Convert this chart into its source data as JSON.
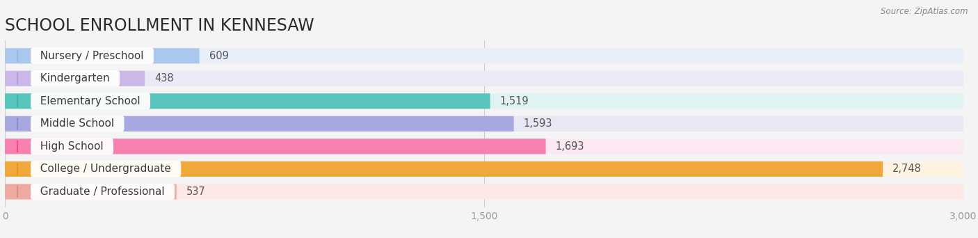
{
  "title": "SCHOOL ENROLLMENT IN KENNESAW",
  "source": "Source: ZipAtlas.com",
  "categories": [
    "Nursery / Preschool",
    "Kindergarten",
    "Elementary School",
    "Middle School",
    "High School",
    "College / Undergraduate",
    "Graduate / Professional"
  ],
  "values": [
    609,
    438,
    1519,
    1593,
    1693,
    2748,
    537
  ],
  "bar_colors": [
    "#aac8ee",
    "#ccb8e8",
    "#58c4bc",
    "#a8a8e0",
    "#f880b0",
    "#f0a83c",
    "#eeaaa0"
  ],
  "bar_bg_colors": [
    "#e8eff8",
    "#ece8f5",
    "#dff4f2",
    "#e8e8f5",
    "#fce8f2",
    "#fef2e0",
    "#fde8e6"
  ],
  "label_circle_colors": [
    "#90b8e8",
    "#b898d8",
    "#38b0a8",
    "#8888cc",
    "#f04880",
    "#e89018",
    "#e08878"
  ],
  "xlim": [
    0,
    3000
  ],
  "xtick_labels": [
    "0",
    "1,500",
    "3,000"
  ],
  "xtick_vals": [
    0,
    1500,
    3000
  ],
  "background_color": "#f4f4f4",
  "title_fontsize": 17,
  "bar_height": 0.68,
  "value_fontsize": 10.5,
  "label_fontsize": 11
}
